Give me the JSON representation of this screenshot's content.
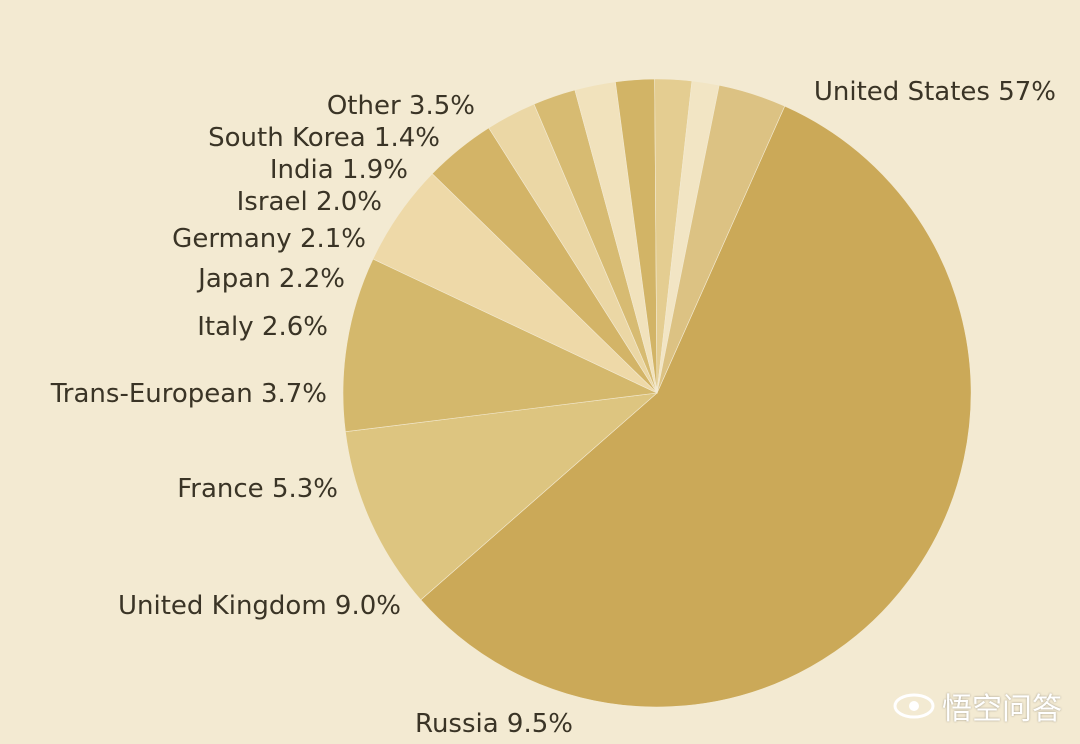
{
  "chart_data": {
    "type": "pie",
    "title": "",
    "slices": [
      {
        "label": "United States 57%",
        "value": 57.0,
        "color": "#cba958"
      },
      {
        "label": "Russia 9.5%",
        "value": 9.5,
        "color": "#ddc580"
      },
      {
        "label": "United Kingdom 9.0%",
        "value": 9.0,
        "color": "#d4b86c"
      },
      {
        "label": "France 5.3%",
        "value": 5.3,
        "color": "#eed9a8"
      },
      {
        "label": "Trans-European 3.7%",
        "value": 3.7,
        "color": "#d3b467"
      },
      {
        "label": "Italy 2.6%",
        "value": 2.6,
        "color": "#ebd7a5"
      },
      {
        "label": "Japan 2.2%",
        "value": 2.2,
        "color": "#d7bb72"
      },
      {
        "label": "Germany 2.1%",
        "value": 2.1,
        "color": "#f1e2bc"
      },
      {
        "label": "Israel 2.0%",
        "value": 2.0,
        "color": "#d2b466"
      },
      {
        "label": "India 1.9%",
        "value": 1.9,
        "color": "#e4cd91"
      },
      {
        "label": "South Korea 1.4%",
        "value": 1.4,
        "color": "#f2e5c4"
      },
      {
        "label": "Other 3.5%",
        "value": 3.5,
        "color": "#dcc283"
      }
    ]
  },
  "watermark": {
    "text": "悟空问答",
    "icon": "eye-logo-icon"
  }
}
